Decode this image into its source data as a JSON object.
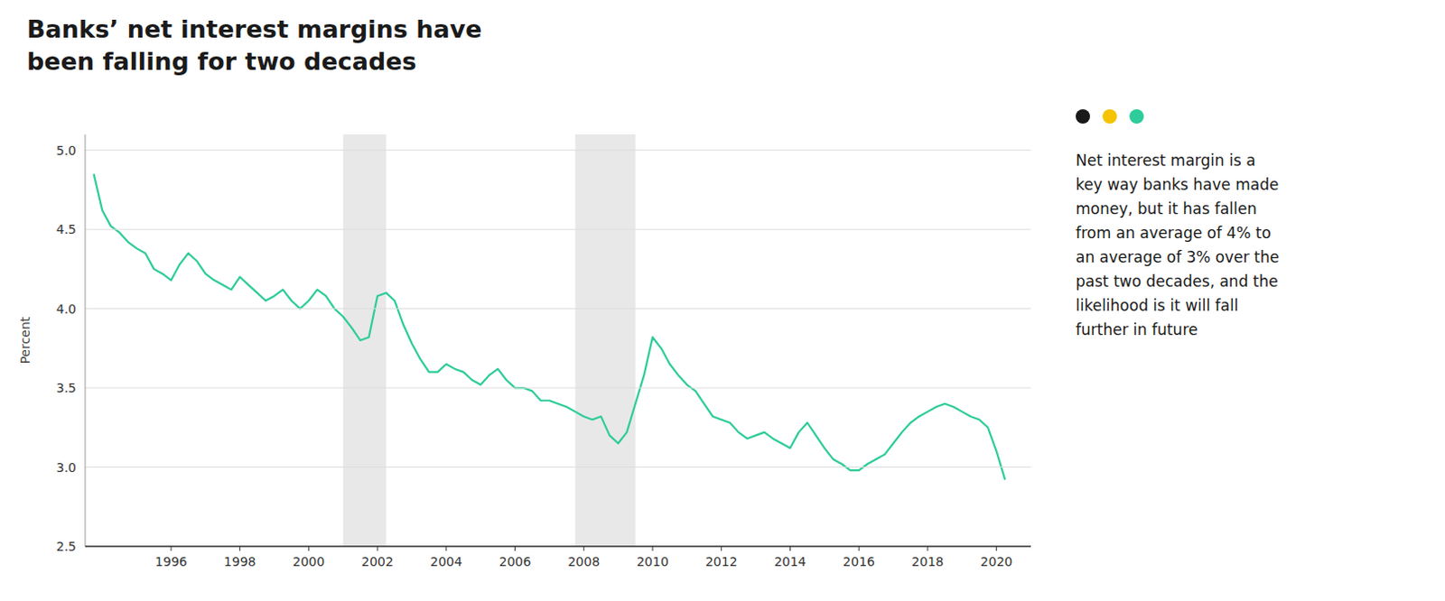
{
  "chart_data": {
    "type": "line",
    "title": "Banks’ net interest margins have\nbeen falling for two decades",
    "y_label": "Percent",
    "color": "#2ecc9a",
    "xlim": [
      1993.5,
      2021.0
    ],
    "ylim": [
      2.5,
      5.1
    ],
    "xticks": [
      1996,
      1998,
      2000,
      2002,
      2004,
      2006,
      2008,
      2010,
      2012,
      2014,
      2016,
      2018,
      2020
    ],
    "yticks": [
      2.5,
      {
        "value": 3.0,
        "label": "3.0"
      },
      3.5,
      {
        "value": 4.0,
        "label": "4.0"
      },
      4.5,
      {
        "value": 5.0,
        "label": "5.0"
      }
    ],
    "grid": true,
    "shaded_ranges": [
      {
        "from": 2001.0,
        "to": 2002.25,
        "color": "#e8e8e8"
      },
      {
        "from": 2007.75,
        "to": 2009.5,
        "color": "#e8e8e8"
      }
    ],
    "annotation": {
      "colors": [
        "#1a1a1a",
        "#f5c400",
        "#2ecc9a"
      ],
      "text": "Net interest margin is a\nkey way banks have made\nmoney, but it has fallen\nfrom an average of 4% to\nan average of 3% over the\npast two decades, and the\nlikelihood is it will fall\nfurther in future"
    },
    "x": [
      1993.75,
      1994.0,
      1994.25,
      1994.5,
      1994.75,
      1995.0,
      1995.25,
      1995.5,
      1995.75,
      1996.0,
      1996.25,
      1996.5,
      1996.75,
      1997.0,
      1997.25,
      1997.5,
      1997.75,
      1998.0,
      1998.25,
      1998.5,
      1998.75,
      1999.0,
      1999.25,
      1999.5,
      1999.75,
      2000.0,
      2000.25,
      2000.5,
      2000.75,
      2001.0,
      2001.25,
      2001.5,
      2001.75,
      2002.0,
      2002.25,
      2002.5,
      2002.75,
      2003.0,
      2003.25,
      2003.5,
      2003.75,
      2004.0,
      2004.25,
      2004.5,
      2004.75,
      2005.0,
      2005.25,
      2005.5,
      2005.75,
      2006.0,
      2006.25,
      2006.5,
      2006.75,
      2007.0,
      2007.25,
      2007.5,
      2007.75,
      2008.0,
      2008.25,
      2008.5,
      2008.75,
      2009.0,
      2009.25,
      2009.5,
      2009.75,
      2010.0,
      2010.25,
      2010.5,
      2010.75,
      2011.0,
      2011.25,
      2011.5,
      2011.75,
      2012.0,
      2012.25,
      2012.5,
      2012.75,
      2013.0,
      2013.25,
      2013.5,
      2013.75,
      2014.0,
      2014.25,
      2014.5,
      2014.75,
      2015.0,
      2015.25,
      2015.5,
      2015.75,
      2016.0,
      2016.25,
      2016.5,
      2016.75,
      2017.0,
      2017.25,
      2017.5,
      2017.75,
      2018.0,
      2018.25,
      2018.5,
      2018.75,
      2019.0,
      2019.25,
      2019.5,
      2019.75,
      2020.0,
      2020.25
    ],
    "values": [
      4.85,
      4.62,
      4.52,
      4.48,
      4.42,
      4.38,
      4.35,
      4.25,
      4.22,
      4.18,
      4.28,
      4.35,
      4.3,
      4.22,
      4.18,
      4.15,
      4.12,
      4.2,
      4.15,
      4.1,
      4.05,
      4.08,
      4.12,
      4.05,
      4.0,
      4.05,
      4.12,
      4.08,
      4.0,
      3.95,
      3.88,
      3.8,
      3.82,
      4.08,
      4.1,
      4.05,
      3.9,
      3.78,
      3.68,
      3.6,
      3.6,
      3.65,
      3.62,
      3.6,
      3.55,
      3.52,
      3.58,
      3.62,
      3.55,
      3.5,
      3.5,
      3.48,
      3.42,
      3.42,
      3.4,
      3.38,
      3.35,
      3.32,
      3.3,
      3.32,
      3.2,
      3.15,
      3.22,
      3.4,
      3.58,
      3.82,
      3.75,
      3.65,
      3.58,
      3.52,
      3.48,
      3.4,
      3.32,
      3.3,
      3.28,
      3.22,
      3.18,
      3.2,
      3.22,
      3.18,
      3.15,
      3.12,
      3.22,
      3.28,
      3.2,
      3.12,
      3.05,
      3.02,
      2.98,
      2.98,
      3.02,
      3.05,
      3.08,
      3.15,
      3.22,
      3.28,
      3.32,
      3.35,
      3.38,
      3.4,
      3.38,
      3.35,
      3.32,
      3.3,
      3.25,
      3.1,
      2.92
    ]
  }
}
